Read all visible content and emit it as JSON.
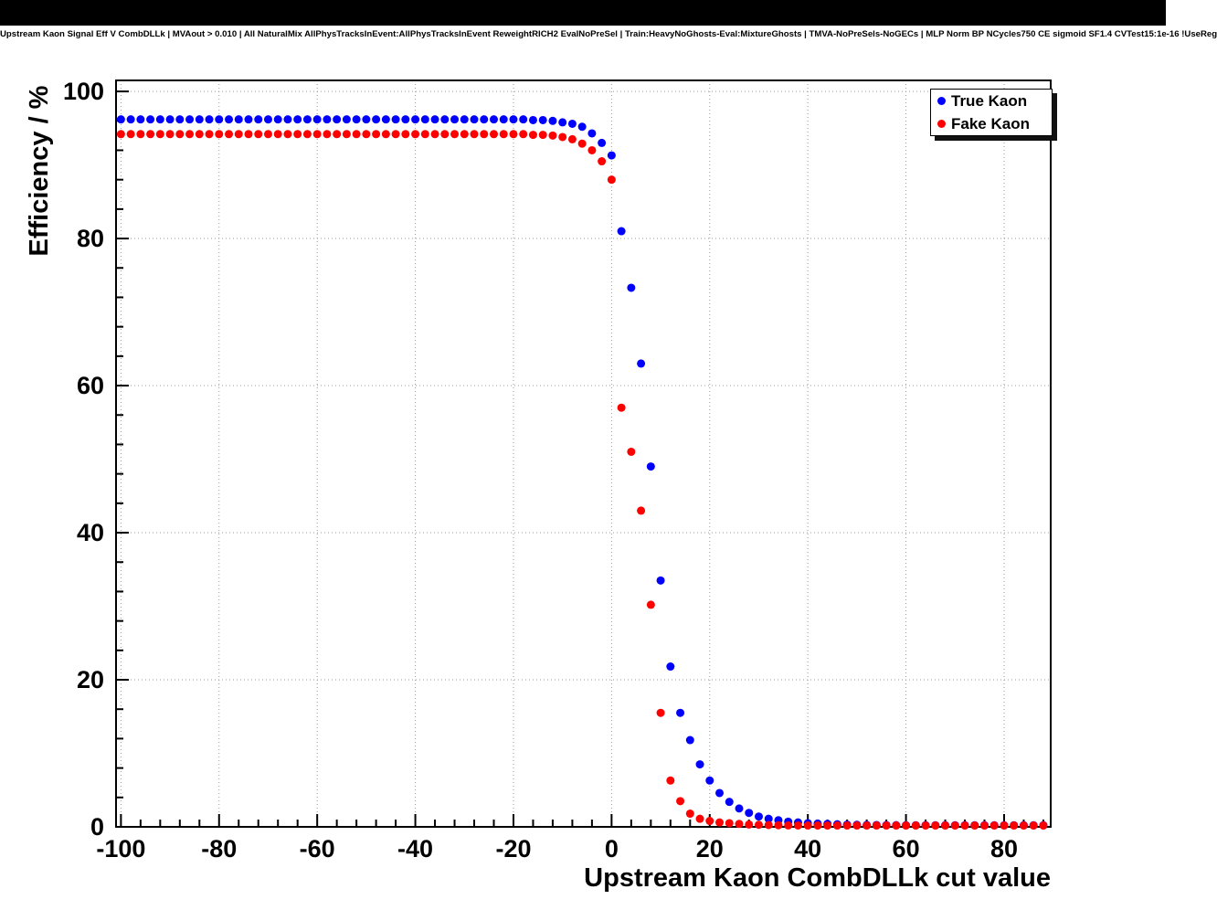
{
  "header": {
    "title": "Upstream Kaon Signal Eff V CombDLLk | MVAout > 0.010 | All NaturalMix AllPhysTracksInEvent:AllPhysTracksInEvent ReweightRICH2 EvalNoPreSel | Train:HeavyNoGhosts-Eval:MixtureGhosts | TMVA-NoPreSels-NoGECs | MLP Norm BP NCycles750 CE sigmoid SF1.4 CVTest15:1e-16 !UseReg"
  },
  "legend": {
    "entries": [
      {
        "label": "True Kaon",
        "color": "#0000ff"
      },
      {
        "label": "Fake Kaon",
        "color": "#ff0000"
      }
    ]
  },
  "chart_data": {
    "type": "scatter",
    "title": "Upstream Kaon Signal Eff V CombDLLk | MVAout > 0.010 | All NaturalMix AllPhysTracksInEvent:AllPhysTracksInEvent ReweightRICH2 EvalNoPreSel | Train:HeavyNoGhosts-Eval:MixtureGhosts | TMVA-NoPreSels-NoGECs | MLP Norm BP NCycles750 CE sigmoid SF1.4 CVTest15:1e-16 !UseReg",
    "xlabel": "Upstream Kaon CombDLLk cut value",
    "ylabel": "Efficiency / %",
    "xlim": [
      -101,
      89.5
    ],
    "ylim": [
      0,
      101.5
    ],
    "x_ticks": [
      -100,
      -80,
      -60,
      -40,
      -20,
      0,
      20,
      40,
      60,
      80
    ],
    "y_ticks": [
      0,
      20,
      40,
      60,
      80,
      100
    ],
    "grid": true,
    "legend_position": "top-right",
    "marker": "filled-circle",
    "x": [
      -100,
      -98,
      -96,
      -94,
      -92,
      -90,
      -88,
      -86,
      -84,
      -82,
      -80,
      -78,
      -76,
      -74,
      -72,
      -70,
      -68,
      -66,
      -64,
      -62,
      -60,
      -58,
      -56,
      -54,
      -52,
      -50,
      -48,
      -46,
      -44,
      -42,
      -40,
      -38,
      -36,
      -34,
      -32,
      -30,
      -28,
      -26,
      -24,
      -22,
      -20,
      -18,
      -16,
      -14,
      -12,
      -10,
      -8,
      -6,
      -4,
      -2,
      0,
      2,
      4,
      6,
      8,
      10,
      12,
      14,
      16,
      18,
      20,
      22,
      24,
      26,
      28,
      30,
      32,
      34,
      36,
      38,
      40,
      42,
      44,
      46,
      48,
      50,
      52,
      54,
      56,
      58,
      60,
      62,
      64,
      66,
      68,
      70,
      72,
      74,
      76,
      78,
      80,
      82,
      84,
      86,
      88
    ],
    "series": [
      {
        "name": "True Kaon",
        "color": "#0000ff",
        "y": [
          96.2,
          96.2,
          96.2,
          96.2,
          96.2,
          96.2,
          96.2,
          96.2,
          96.2,
          96.2,
          96.2,
          96.2,
          96.2,
          96.2,
          96.2,
          96.2,
          96.2,
          96.2,
          96.2,
          96.2,
          96.2,
          96.2,
          96.2,
          96.2,
          96.2,
          96.2,
          96.2,
          96.2,
          96.2,
          96.2,
          96.2,
          96.2,
          96.2,
          96.2,
          96.2,
          96.2,
          96.2,
          96.2,
          96.2,
          96.2,
          96.2,
          96.2,
          96.1,
          96.1,
          96.0,
          95.8,
          95.6,
          95.2,
          94.3,
          93.0,
          91.3,
          81.0,
          73.3,
          63.0,
          49.0,
          33.5,
          21.8,
          15.5,
          11.8,
          8.5,
          6.3,
          4.6,
          3.4,
          2.5,
          1.9,
          1.4,
          1.1,
          0.9,
          0.7,
          0.6,
          0.5,
          0.45,
          0.4,
          0.35,
          0.3,
          0.28,
          0.26,
          0.25,
          0.24,
          0.23,
          0.22,
          0.22,
          0.22,
          0.22,
          0.22,
          0.22,
          0.22,
          0.22,
          0.22,
          0.22,
          0.22,
          0.22,
          0.22,
          0.22,
          0.22
        ]
      },
      {
        "name": "Fake Kaon",
        "color": "#ff0000",
        "y": [
          94.2,
          94.2,
          94.2,
          94.2,
          94.2,
          94.2,
          94.2,
          94.2,
          94.2,
          94.2,
          94.2,
          94.2,
          94.2,
          94.2,
          94.2,
          94.2,
          94.2,
          94.2,
          94.2,
          94.2,
          94.2,
          94.2,
          94.2,
          94.2,
          94.2,
          94.2,
          94.2,
          94.2,
          94.2,
          94.2,
          94.2,
          94.2,
          94.2,
          94.2,
          94.2,
          94.2,
          94.2,
          94.2,
          94.2,
          94.2,
          94.2,
          94.2,
          94.1,
          94.1,
          94.0,
          93.8,
          93.5,
          92.9,
          92.0,
          90.5,
          88.0,
          57.0,
          51.0,
          43.0,
          30.2,
          15.5,
          6.3,
          3.5,
          1.8,
          1.1,
          0.8,
          0.6,
          0.5,
          0.4,
          0.32,
          0.28,
          0.25,
          0.22,
          0.2,
          0.19,
          0.18,
          0.18,
          0.18,
          0.18,
          0.18,
          0.18,
          0.18,
          0.18,
          0.18,
          0.18,
          0.18,
          0.18,
          0.18,
          0.18,
          0.18,
          0.18,
          0.18,
          0.18,
          0.18,
          0.18,
          0.18,
          0.18,
          0.18,
          0.18,
          0.18
        ]
      }
    ]
  }
}
